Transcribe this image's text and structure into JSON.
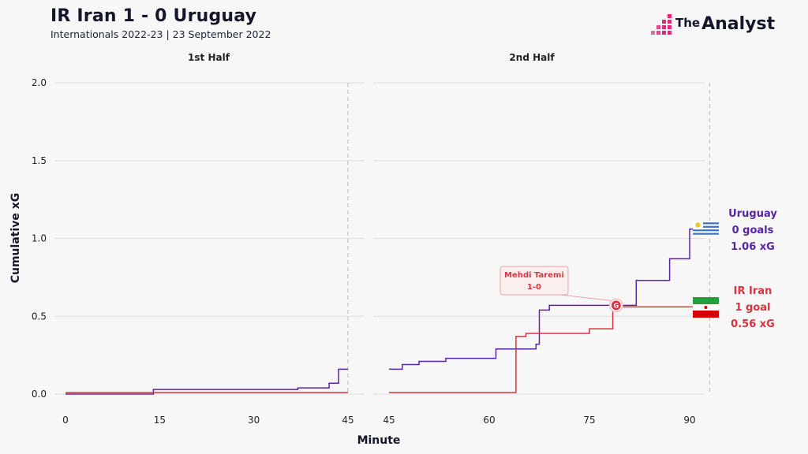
{
  "header": {
    "title": "IR Iran 1 - 0 Uruguay",
    "subtitle": "Internationals 2022-23 | 23 September 2022"
  },
  "brand": {
    "prefix": "The",
    "name": "Analyst",
    "logo_icon": "bar-chart-logo-icon"
  },
  "colors": {
    "iran": "#d8343f",
    "uruguay": "#5a24a8",
    "grid": "#dedede",
    "text": "#1a1a2e",
    "brand_pink": "#e6287a"
  },
  "chart_data": {
    "type": "line",
    "subtype": "step",
    "ylabel": "Cumulative xG",
    "xlabel": "Minute",
    "ylim": [
      0,
      2.0
    ],
    "yticks": [
      "0.0",
      "0.5",
      "1.0",
      "1.5",
      "2.0"
    ],
    "panels": [
      {
        "title": "1st Half",
        "xlim": [
          0,
          45
        ],
        "xticks": [
          "0",
          "15",
          "30",
          "45"
        ],
        "end_marker": 45,
        "series": [
          {
            "name": "Uruguay",
            "points": [
              [
                0,
                0.0
              ],
              [
                14,
                0.0
              ],
              [
                14,
                0.03
              ],
              [
                37,
                0.03
              ],
              [
                37,
                0.04
              ],
              [
                42,
                0.04
              ],
              [
                42,
                0.07
              ],
              [
                43.5,
                0.07
              ],
              [
                43.5,
                0.16
              ],
              [
                45,
                0.16
              ]
            ]
          },
          {
            "name": "IR Iran",
            "points": [
              [
                0,
                0.01
              ],
              [
                45,
                0.01
              ]
            ]
          }
        ]
      },
      {
        "title": "2nd Half",
        "xlim": [
          45,
          95
        ],
        "xticks": [
          "45",
          "60",
          "75",
          "90"
        ],
        "end_marker": 93,
        "series": [
          {
            "name": "Uruguay",
            "points": [
              [
                45,
                0.16
              ],
              [
                47,
                0.16
              ],
              [
                47,
                0.19
              ],
              [
                49.5,
                0.19
              ],
              [
                49.5,
                0.21
              ],
              [
                53.5,
                0.21
              ],
              [
                53.5,
                0.23
              ],
              [
                61,
                0.23
              ],
              [
                61,
                0.29
              ],
              [
                67,
                0.29
              ],
              [
                67,
                0.32
              ],
              [
                67.5,
                0.32
              ],
              [
                67.5,
                0.54
              ],
              [
                69,
                0.54
              ],
              [
                69,
                0.57
              ],
              [
                82,
                0.57
              ],
              [
                82,
                0.73
              ],
              [
                87,
                0.73
              ],
              [
                87,
                0.87
              ],
              [
                90,
                0.87
              ],
              [
                90,
                1.06
              ],
              [
                93,
                1.06
              ]
            ]
          },
          {
            "name": "IR Iran",
            "points": [
              [
                45,
                0.01
              ],
              [
                64,
                0.01
              ],
              [
                64,
                0.37
              ],
              [
                65.5,
                0.37
              ],
              [
                65.5,
                0.39
              ],
              [
                75,
                0.39
              ],
              [
                75,
                0.42
              ],
              [
                78.5,
                0.42
              ],
              [
                78.5,
                0.56
              ],
              [
                93,
                0.56
              ]
            ]
          }
        ]
      }
    ],
    "goals": [
      {
        "team": "IR Iran",
        "minute": 79,
        "xg": 0.57,
        "marker": "G",
        "label_player": "Mehdi Taremi",
        "label_score": "1-0"
      }
    ],
    "teams": [
      {
        "name": "Uruguay",
        "goals_text": "0 goals",
        "xg_text": "1.06 xG",
        "flag": "uruguay-flag-icon"
      },
      {
        "name": "IR Iran",
        "goals_text": "1 goal",
        "xg_text": "0.56 xG",
        "flag": "iran-flag-icon"
      }
    ]
  }
}
